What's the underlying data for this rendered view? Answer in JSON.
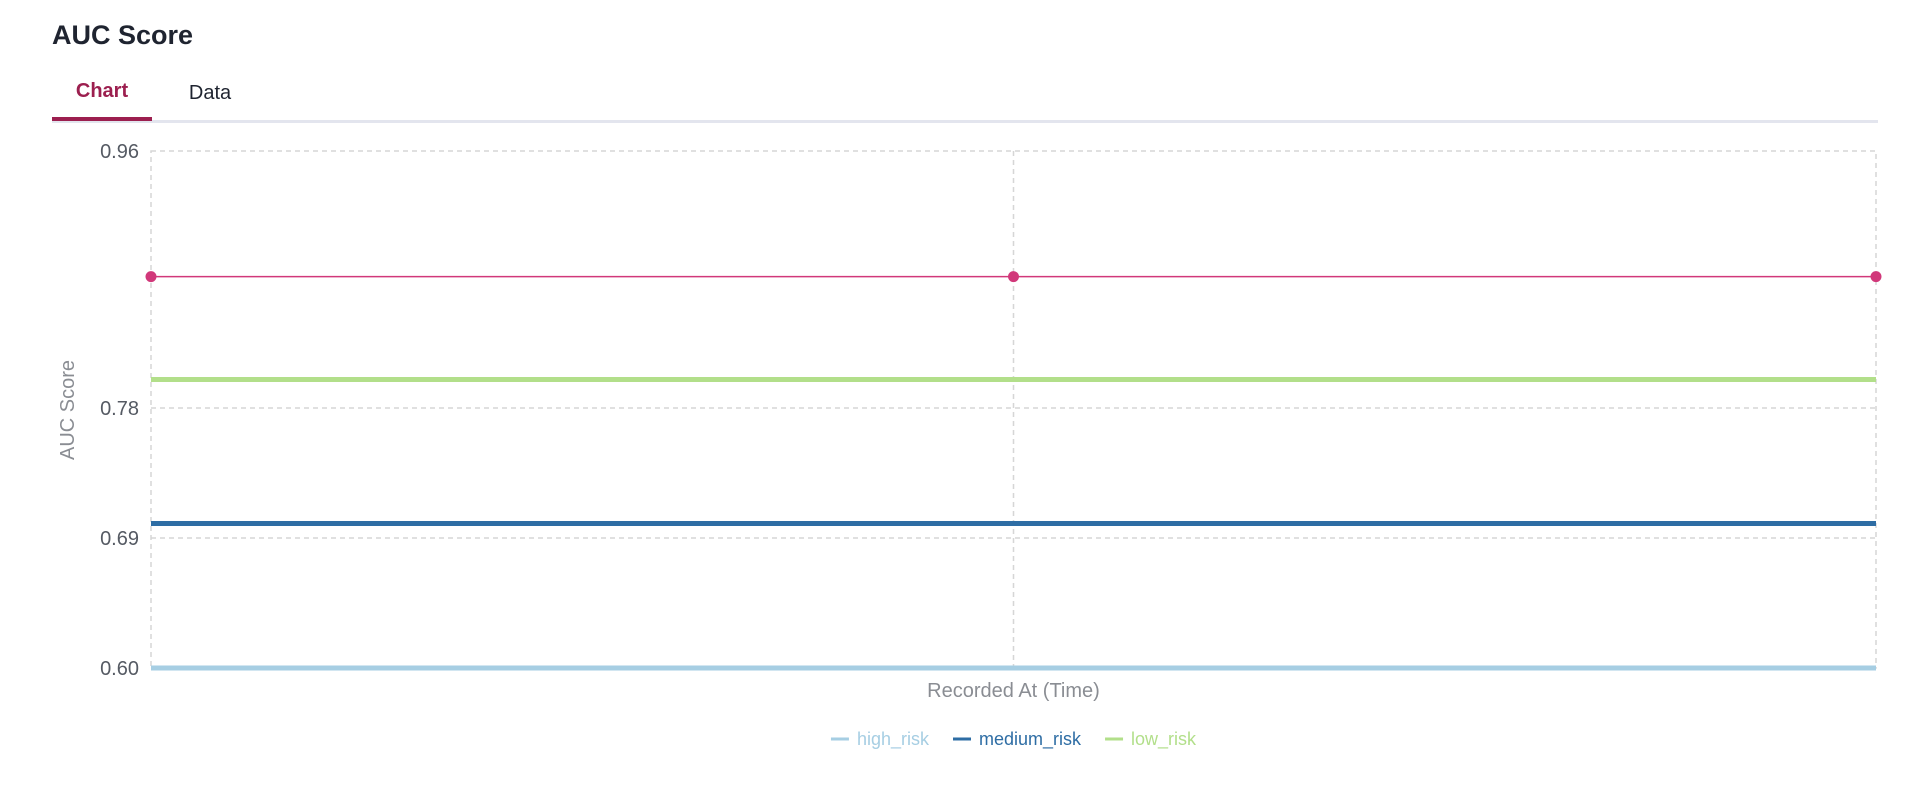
{
  "panel": {
    "title": "AUC Score"
  },
  "tabs": [
    {
      "label": "Chart",
      "active": true
    },
    {
      "label": "Data",
      "active": false
    }
  ],
  "chart_data": {
    "type": "line",
    "title": "",
    "xlabel": "Recorded At (Time)",
    "ylabel": "AUC Score",
    "ylim": [
      0.6,
      0.96
    ],
    "y_ticks": [
      0.6,
      0.69,
      0.78,
      0.96
    ],
    "y_tick_labels": [
      "0.60",
      "0.69",
      "0.78",
      "0.96"
    ],
    "x": [
      0,
      1,
      2
    ],
    "grid": true,
    "legend_position": "bottom-center",
    "series": [
      {
        "name": "high_risk",
        "color": "#a6cee3",
        "values": [
          0.6,
          0.6,
          0.6
        ],
        "show_in_legend": true,
        "markers": false
      },
      {
        "name": "medium_risk",
        "color": "#2e6da4",
        "values": [
          0.7,
          0.7,
          0.7
        ],
        "show_in_legend": true,
        "markers": false
      },
      {
        "name": "low_risk",
        "color": "#b2df8a",
        "values": [
          0.8,
          0.8,
          0.8
        ],
        "show_in_legend": true,
        "markers": false
      },
      {
        "name": "",
        "color": "#d1387a",
        "values": [
          0.872,
          0.872,
          0.872
        ],
        "show_in_legend": false,
        "markers": true
      }
    ]
  }
}
